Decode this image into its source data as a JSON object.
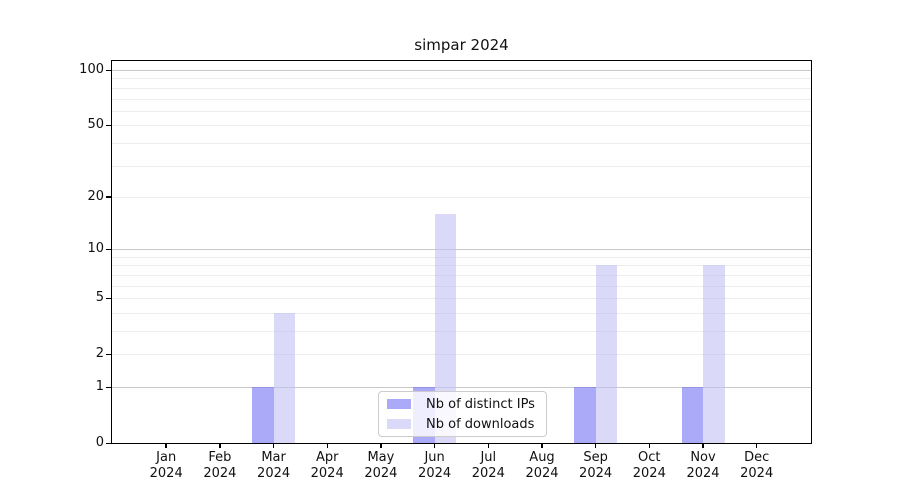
{
  "chart_data": {
    "type": "bar",
    "title": "simpar 2024",
    "year": "2024",
    "categories": [
      "Jan",
      "Feb",
      "Mar",
      "Apr",
      "May",
      "Jun",
      "Jul",
      "Aug",
      "Sep",
      "Oct",
      "Nov",
      "Dec"
    ],
    "series": [
      {
        "name": "Nb of distinct IPs",
        "color": "#aaaaf8",
        "fill": "rgba(113,113,243,0.6)",
        "values": [
          0,
          0,
          1,
          0,
          0,
          1,
          0,
          0,
          1,
          0,
          1,
          0
        ]
      },
      {
        "name": "Nb of downloads",
        "color": "#dadaf8",
        "fill": "rgba(193,193,243,0.6)",
        "values": [
          0,
          0,
          4,
          0,
          0,
          16,
          0,
          0,
          8,
          0,
          8,
          0
        ]
      }
    ],
    "yscale": "log10(1+x)",
    "ylim": [
      0,
      100
    ],
    "yticks": [
      0,
      1,
      2,
      5,
      10,
      20,
      50,
      100
    ],
    "major_gridlines": [
      1,
      10,
      100
    ],
    "minor_gridlines": [
      2,
      3,
      4,
      5,
      6,
      7,
      8,
      9,
      20,
      30,
      40,
      50,
      60,
      70,
      80,
      90
    ],
    "grid": true,
    "legend_position": "bottom-center",
    "colors": {
      "frame": "#000000",
      "major_grid": "#c8c8c8",
      "minor_grid": "#ececec",
      "legend_border": "#cccccc",
      "text": "#111111"
    }
  }
}
